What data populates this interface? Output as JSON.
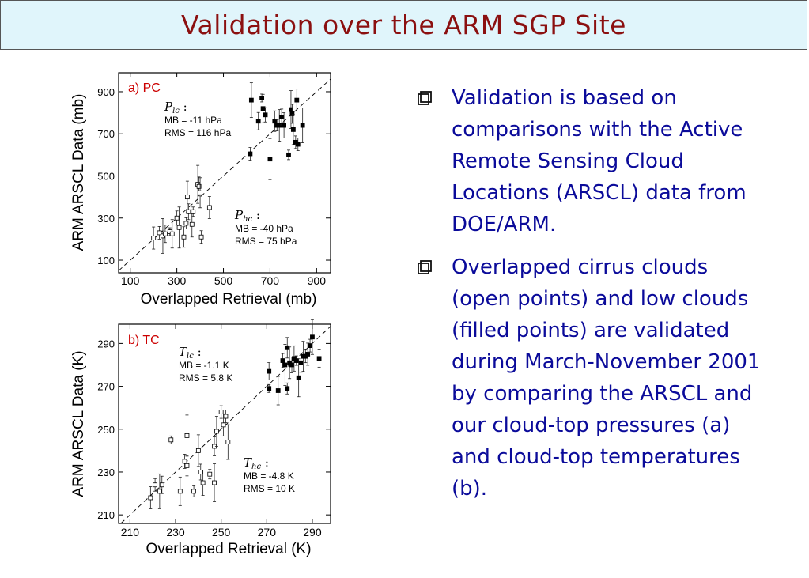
{
  "header": {
    "title": "Validation over the ARM SGP Site"
  },
  "bullets": [
    {
      "text": "Validation is based on comparisons with the Active Remote Sensing Cloud Locations (ARSCL) data from DOE/ARM."
    },
    {
      "text": "Overlapped cirrus clouds (open points) and low clouds (filled points) are validated during March-November 2001 by comparing the ARSCL and our cloud-top pressures (a) and cloud-top temperatures (b)."
    }
  ],
  "colors": {
    "title": "#8b1010",
    "bullet_text": "#0b0b9a",
    "panel_label": "#cc0000",
    "title_bg": "#e0f5fb"
  },
  "chart_data": [
    {
      "type": "scatter",
      "panel_label": "a) PC",
      "xlabel": "Overlapped Retrieval (mb)",
      "ylabel": "ARM ARSCL Data (mb)",
      "xlim": [
        50,
        960
      ],
      "ylim": [
        40,
        990
      ],
      "xticks": [
        100,
        300,
        500,
        700,
        900
      ],
      "yticks": [
        100,
        300,
        500,
        700,
        900
      ],
      "one_to_one_line": true,
      "annotations": [
        {
          "var": "P",
          "sub": "lc",
          "mb": "MB =  -11 hPa",
          "rms": "RMS = 116 hPa"
        },
        {
          "var": "P",
          "sub": "hc",
          "mb": "MB = -40 hPa",
          "rms": "RMS = 75 hPa"
        }
      ],
      "series": [
        {
          "filled": false,
          "points": [
            [
              200,
              205
            ],
            [
              225,
              230
            ],
            [
              240,
              215
            ],
            [
              250,
              225
            ],
            [
              270,
              235
            ],
            [
              280,
              225
            ],
            [
              300,
              300
            ],
            [
              310,
              255
            ],
            [
              330,
              210
            ],
            [
              340,
              275
            ],
            [
              345,
              400
            ],
            [
              350,
              330
            ],
            [
              365,
              270
            ],
            [
              370,
              330
            ],
            [
              390,
              460
            ],
            [
              395,
              450
            ],
            [
              400,
              420
            ],
            [
              405,
              210
            ],
            [
              440,
              350
            ]
          ]
        },
        {
          "filled": true,
          "points": [
            [
              615,
              605
            ],
            [
              620,
              860
            ],
            [
              650,
              760
            ],
            [
              665,
              870
            ],
            [
              670,
              820
            ],
            [
              680,
              790
            ],
            [
              700,
              580
            ],
            [
              720,
              760
            ],
            [
              730,
              740
            ],
            [
              740,
              740
            ],
            [
              750,
              780
            ],
            [
              760,
              740
            ],
            [
              780,
              600
            ],
            [
              790,
              815
            ],
            [
              795,
              795
            ],
            [
              800,
              720
            ],
            [
              810,
              660
            ],
            [
              815,
              860
            ],
            [
              820,
              650
            ],
            [
              840,
              740
            ]
          ]
        }
      ]
    },
    {
      "type": "scatter",
      "panel_label": "b) TC",
      "xlabel": "Overlapped Retrieval (K)",
      "ylabel": "ARM ARSCL Data (K)",
      "xlim": [
        205,
        298
      ],
      "ylim": [
        206,
        299
      ],
      "xticks": [
        210,
        230,
        250,
        270,
        290
      ],
      "yticks": [
        210,
        230,
        250,
        270,
        290
      ],
      "one_to_one_line": true,
      "annotations": [
        {
          "var": "T",
          "sub": "lc",
          "mb": "MB = -1.1 K",
          "rms": "RMS = 5.8 K"
        },
        {
          "var": "T",
          "sub": "hc",
          "mb": "MB = -4.8 K",
          "rms": "RMS = 10 K"
        }
      ],
      "series": [
        {
          "filled": false,
          "points": [
            [
              219,
              218
            ],
            [
              221,
              224
            ],
            [
              223,
              221
            ],
            [
              224,
              224
            ],
            [
              228,
              245
            ],
            [
              232,
              221
            ],
            [
              234,
              235
            ],
            [
              235,
              247
            ],
            [
              235,
              233
            ],
            [
              238,
              221
            ],
            [
              240,
              240
            ],
            [
              241,
              230
            ],
            [
              242,
              225
            ],
            [
              245,
              229
            ],
            [
              247,
              225
            ],
            [
              247,
              242
            ],
            [
              248,
              249
            ],
            [
              250,
              258
            ],
            [
              251,
              252
            ],
            [
              252,
              256
            ],
            [
              253,
              244
            ]
          ]
        },
        {
          "filled": true,
          "points": [
            [
              271,
              277
            ],
            [
              271,
              269
            ],
            [
              275,
              268
            ],
            [
              277,
              282
            ],
            [
              278,
              280
            ],
            [
              279,
              288
            ],
            [
              279,
              269
            ],
            [
              280,
              281
            ],
            [
              281,
              280
            ],
            [
              282,
              283
            ],
            [
              283,
              282
            ],
            [
              284,
              274
            ],
            [
              285,
              281
            ],
            [
              286,
              284
            ],
            [
              287,
              284
            ],
            [
              288,
              285
            ],
            [
              289,
              289
            ],
            [
              290,
              293
            ],
            [
              293,
              283
            ]
          ]
        }
      ]
    }
  ]
}
